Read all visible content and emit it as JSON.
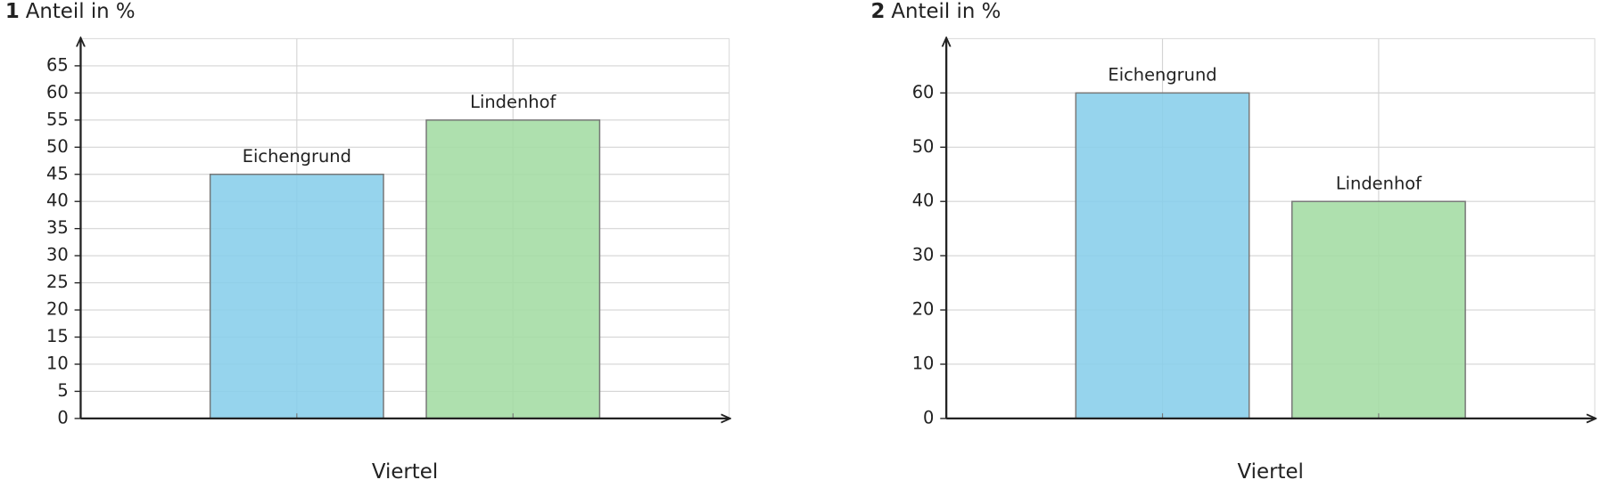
{
  "chart_data": [
    {
      "type": "bar",
      "number": "1",
      "title": "Anteil in %",
      "xlabel": "Viertel",
      "categories": [
        "Eichengrund",
        "Lindenhof"
      ],
      "values": [
        45,
        55
      ],
      "colors": [
        "#87ceeb",
        "#a3dca3"
      ],
      "ylim": [
        0,
        70
      ],
      "yticks": [
        0,
        5,
        10,
        15,
        20,
        25,
        30,
        35,
        40,
        45,
        50,
        55,
        60,
        65
      ],
      "grid": true
    },
    {
      "type": "bar",
      "number": "2",
      "title": "Anteil in %",
      "xlabel": "Viertel",
      "categories": [
        "Eichengrund",
        "Lindenhof"
      ],
      "values": [
        60,
        40
      ],
      "colors": [
        "#87ceeb",
        "#a3dca3"
      ],
      "ylim": [
        0,
        70
      ],
      "yticks": [
        0,
        10,
        20,
        30,
        40,
        50,
        60
      ],
      "grid": true
    }
  ]
}
